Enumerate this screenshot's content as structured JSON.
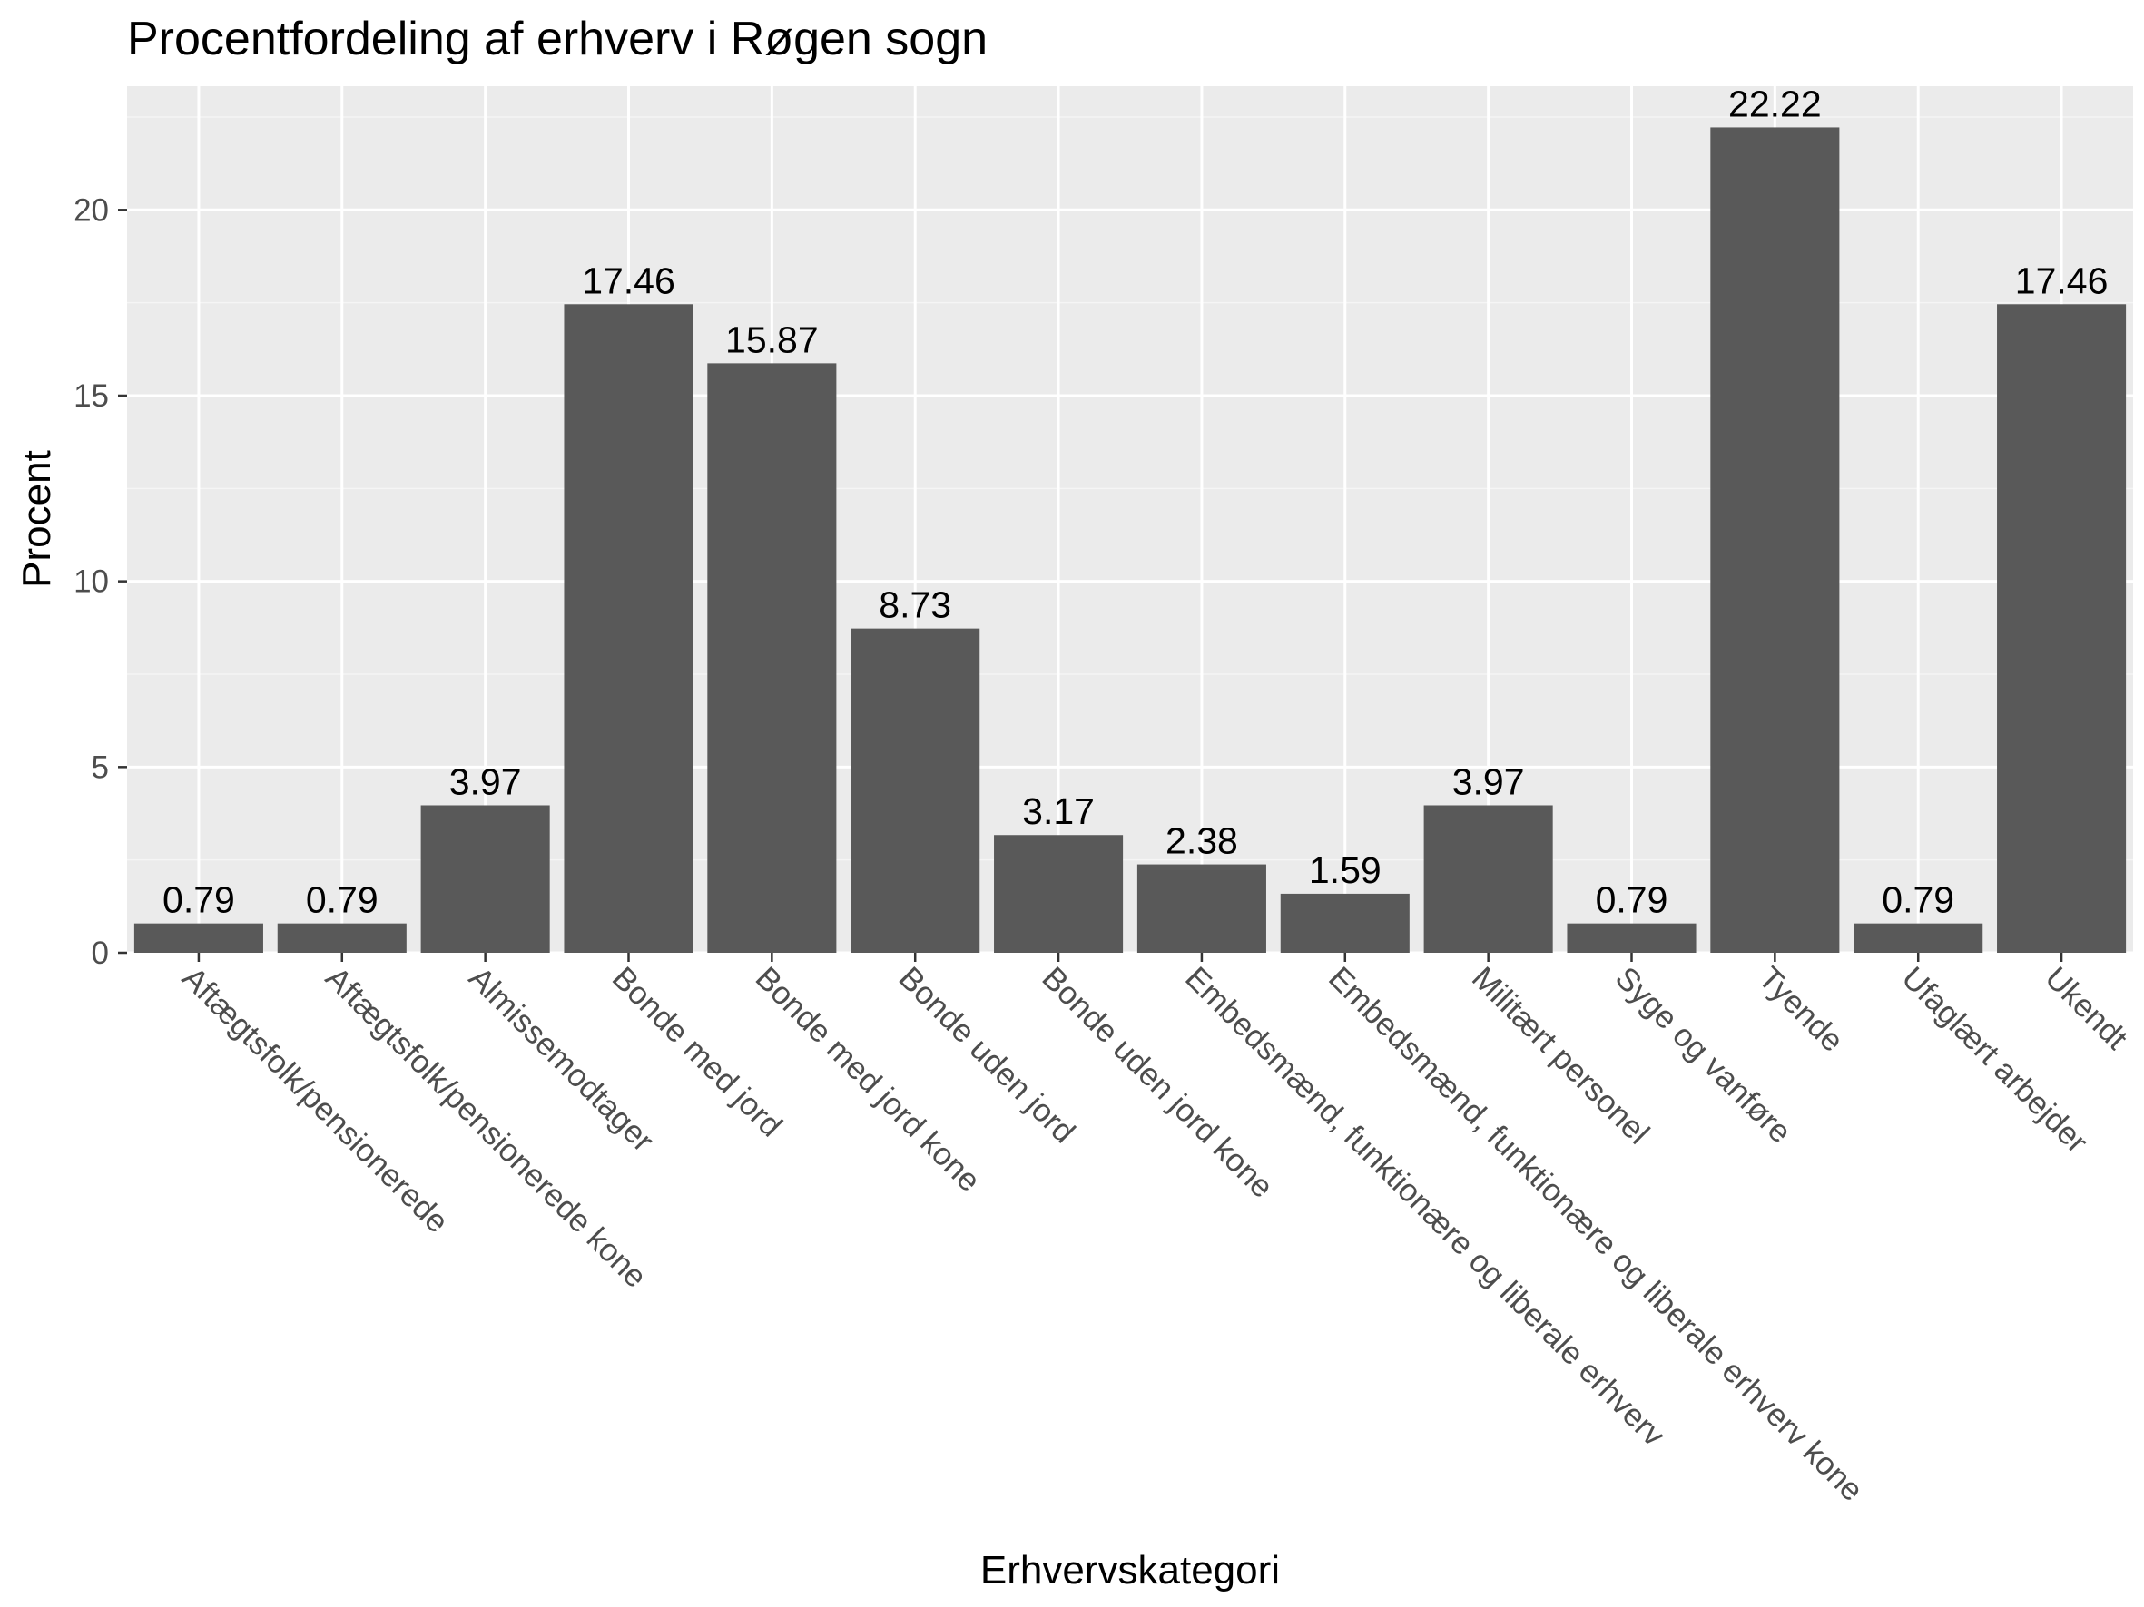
{
  "chart_data": {
    "type": "bar",
    "title": "Procentfordeling af erhverv i Røgen sogn",
    "xlabel": "Erhvervskategori",
    "ylabel": "Procent",
    "ylim": [
      0,
      23.33
    ],
    "yticks": [
      0,
      5,
      10,
      15,
      20
    ],
    "grid": true,
    "legend": "none",
    "categories": [
      "Aftægtsfolk/pensionerede",
      "Aftægtsfolk/pensionerede kone",
      "Almissemodtager",
      "Bonde med jord",
      "Bonde med jord kone",
      "Bonde uden jord",
      "Bonde uden jord kone",
      "Embedsmænd, funktionære og liberale erhverv",
      "Embedsmænd, funktionære og liberale erhverv kone",
      "Militært personel",
      "Syge og vanføre",
      "Tyende",
      "Ufaglært arbejder",
      "Ukendt"
    ],
    "values": [
      0.79,
      0.79,
      3.97,
      17.46,
      15.87,
      8.73,
      3.17,
      2.38,
      1.59,
      3.97,
      0.79,
      22.22,
      0.79,
      17.46
    ],
    "data_labels": [
      "0.79",
      "0.79",
      "3.97",
      "17.46",
      "15.87",
      "8.73",
      "3.17",
      "2.38",
      "1.59",
      "3.97",
      "0.79",
      "22.22",
      "0.79",
      "17.46"
    ],
    "colors": {
      "panel": "#ebebeb",
      "grid_major": "#ffffff",
      "grid_minor": "#f5f5f5",
      "bar": "#595959",
      "tick": "#333333",
      "tick_label": "#4d4d4d"
    }
  }
}
